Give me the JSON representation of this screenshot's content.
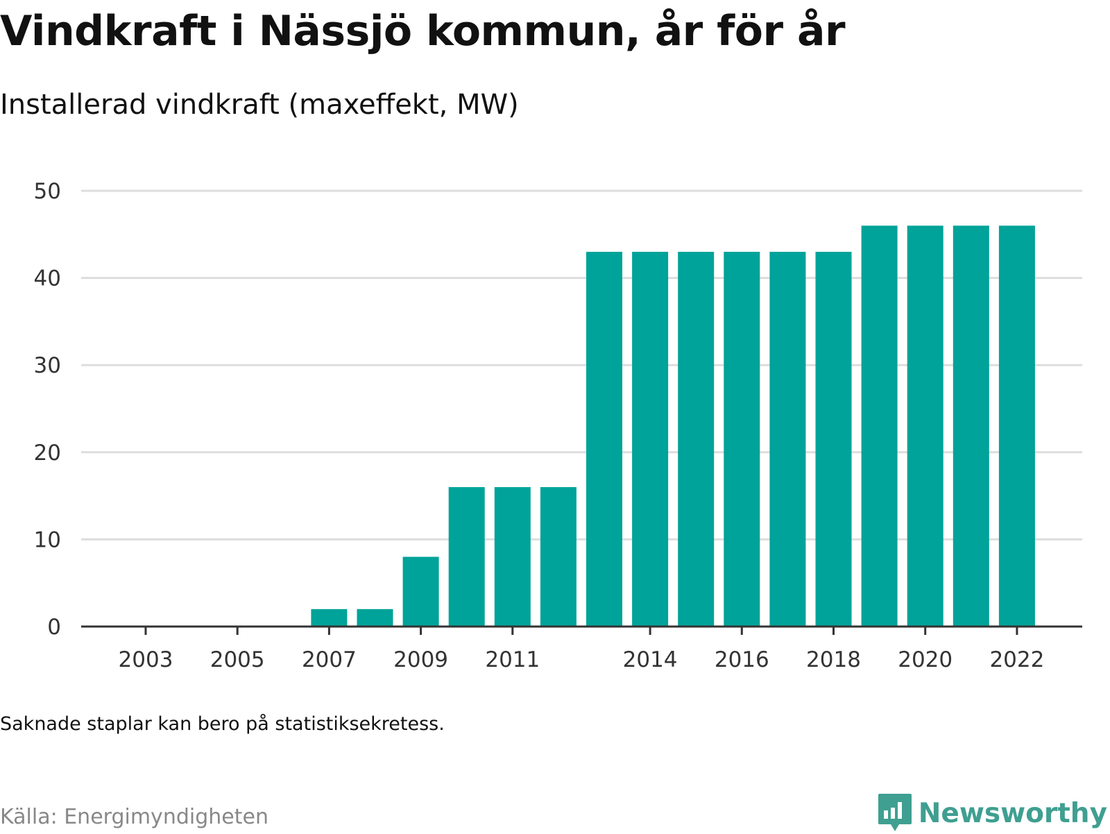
{
  "title": "Vindkraft i Nässjö kommun, år för år",
  "subtitle": "Installerad vindkraft (maxeffekt, MW)",
  "note": "Saknade staplar kan bero på statistiksekretess.",
  "source": "Källa: Energimyndigheten",
  "brand": {
    "name": "Newsworthy",
    "icon": "newsworthy-bar-chart-icon",
    "color": "#3f9f91"
  },
  "colors": {
    "bar": "#00a399",
    "grid": "#dddddd",
    "axis": "#333333"
  },
  "chart_data": {
    "type": "bar",
    "categories": [
      2003,
      2004,
      2005,
      2006,
      2007,
      2008,
      2009,
      2010,
      2011,
      2012,
      2013,
      2014,
      2015,
      2016,
      2017,
      2018,
      2019,
      2020,
      2021,
      2022
    ],
    "values": [
      0,
      0,
      0,
      0,
      2,
      2,
      8,
      16,
      16,
      16,
      43,
      43,
      43,
      43,
      43,
      43,
      46,
      46,
      46,
      46
    ],
    "xtick_labels": [
      "2003",
      "2005",
      "2007",
      "2009",
      "2011",
      "2014",
      "2016",
      "2018",
      "2020",
      "2022"
    ],
    "yticks": [
      0,
      10,
      20,
      30,
      40,
      50
    ],
    "ylim": [
      0,
      50
    ],
    "grid": true,
    "legend": "none"
  }
}
